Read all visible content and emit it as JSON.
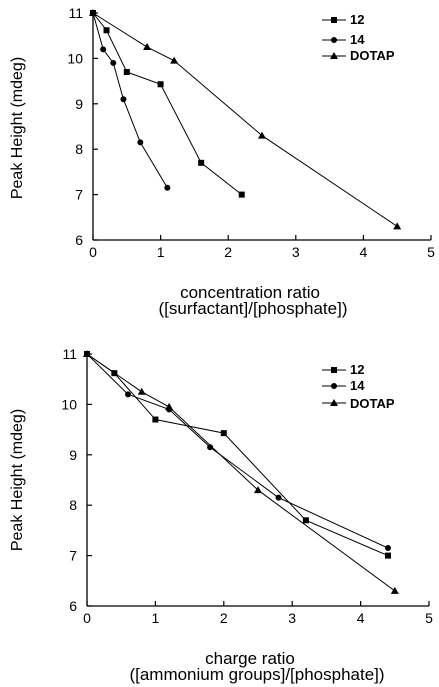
{
  "chart_data": [
    {
      "type": "line",
      "title": "",
      "ylabel": "Peak Height (mdeg)",
      "xlabel_line1": "concentration ratio",
      "xlabel_line2": "([surfactant]/[phosphate])",
      "xlim": [
        0,
        5
      ],
      "ylim": [
        6,
        11
      ],
      "xticks": [
        "0",
        "1",
        "2",
        "3",
        "4",
        "5"
      ],
      "yticks": [
        "6",
        "7",
        "8",
        "9",
        "10",
        "11"
      ],
      "grid": false,
      "legend": "top-right",
      "series": [
        {
          "name": "12",
          "marker": "square",
          "x": [
            0,
            0.2,
            0.5,
            1.0,
            1.6,
            2.2
          ],
          "y": [
            11.0,
            10.62,
            9.7,
            9.43,
            7.7,
            7.0
          ]
        },
        {
          "name": "14",
          "marker": "circle",
          "x": [
            0,
            0.15,
            0.3,
            0.45,
            0.7,
            1.1
          ],
          "y": [
            11.0,
            10.2,
            9.9,
            9.1,
            8.15,
            7.15
          ]
        },
        {
          "name": "DOTAP",
          "marker": "triangle",
          "x": [
            0,
            0.8,
            1.2,
            2.5,
            4.5
          ],
          "y": [
            11.0,
            10.25,
            9.95,
            8.3,
            6.3
          ]
        }
      ]
    },
    {
      "type": "line",
      "title": "",
      "ylabel": "Peak Height (mdeg)",
      "xlabel_line1": "charge ratio",
      "xlabel_line2": "([ammonium groups]/[phosphate])",
      "xlim": [
        0,
        5
      ],
      "ylim": [
        6,
        11
      ],
      "xticks": [
        "0",
        "1",
        "2",
        "3",
        "4",
        "5"
      ],
      "yticks": [
        "6",
        "7",
        "8",
        "9",
        "10",
        "11"
      ],
      "grid": false,
      "legend": "top-right",
      "series": [
        {
          "name": "12",
          "marker": "square",
          "x": [
            0,
            0.4,
            1.0,
            2.0,
            3.2,
            4.4
          ],
          "y": [
            11.0,
            10.62,
            9.7,
            9.43,
            7.7,
            7.0
          ]
        },
        {
          "name": "14",
          "marker": "circle",
          "x": [
            0,
            0.6,
            1.2,
            1.8,
            2.8,
            4.4
          ],
          "y": [
            11.0,
            10.2,
            9.9,
            9.15,
            8.15,
            7.15
          ]
        },
        {
          "name": "DOTAP",
          "marker": "triangle",
          "x": [
            0,
            0.8,
            1.2,
            2.5,
            4.5
          ],
          "y": [
            11.0,
            10.25,
            9.95,
            8.3,
            6.3
          ]
        }
      ]
    }
  ]
}
